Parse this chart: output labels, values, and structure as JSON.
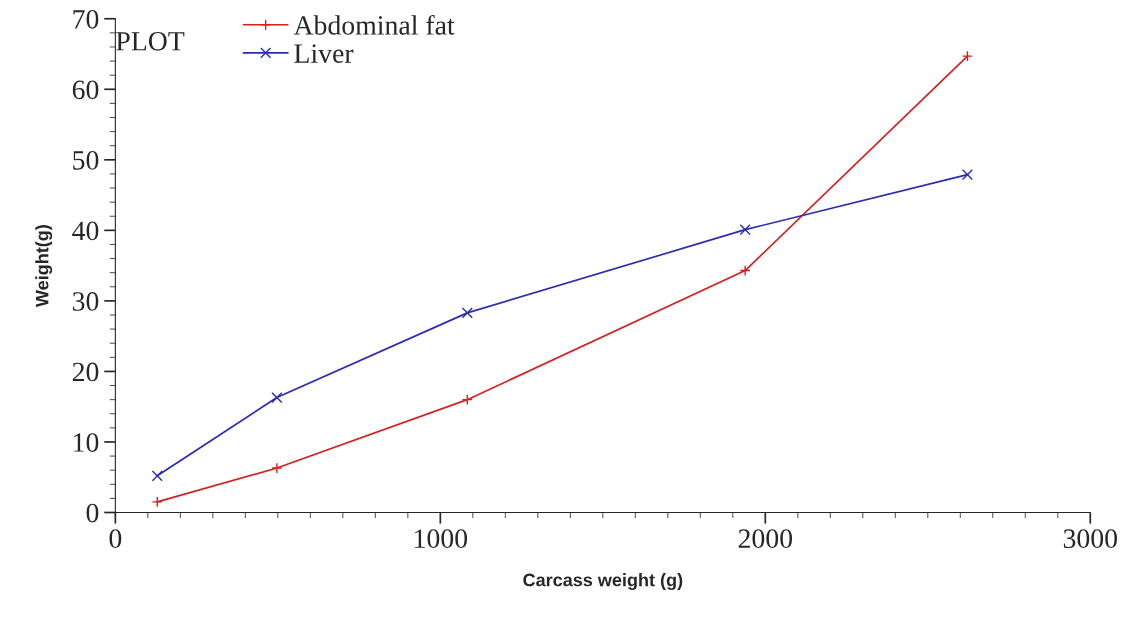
{
  "chart_data": {
    "type": "line",
    "xlabel": "Carcass weight (g)",
    "ylabel": "Weight(g)",
    "legend_title": "PLOT",
    "x": [
      129,
      497,
      1083,
      1938,
      2622
    ],
    "series": [
      {
        "name": "Abdominal fat",
        "color": "#d42020",
        "marker": "cross",
        "values": [
          1.5,
          6.3,
          16,
          34.3,
          64.7
        ]
      },
      {
        "name": "Liver",
        "color": "#2a2ab4",
        "marker": "cross",
        "values": [
          5.2,
          16.3,
          28.3,
          40.1,
          47.9
        ]
      }
    ],
    "xlim": [
      0,
      3000
    ],
    "xticks": [
      0,
      1000,
      2000,
      3000
    ],
    "ylim": [
      0,
      70
    ],
    "yticks": [
      0,
      10,
      20,
      30,
      40,
      50,
      60,
      70
    ],
    "grid": false,
    "legend": "top left",
    "line_style": "solid"
  }
}
